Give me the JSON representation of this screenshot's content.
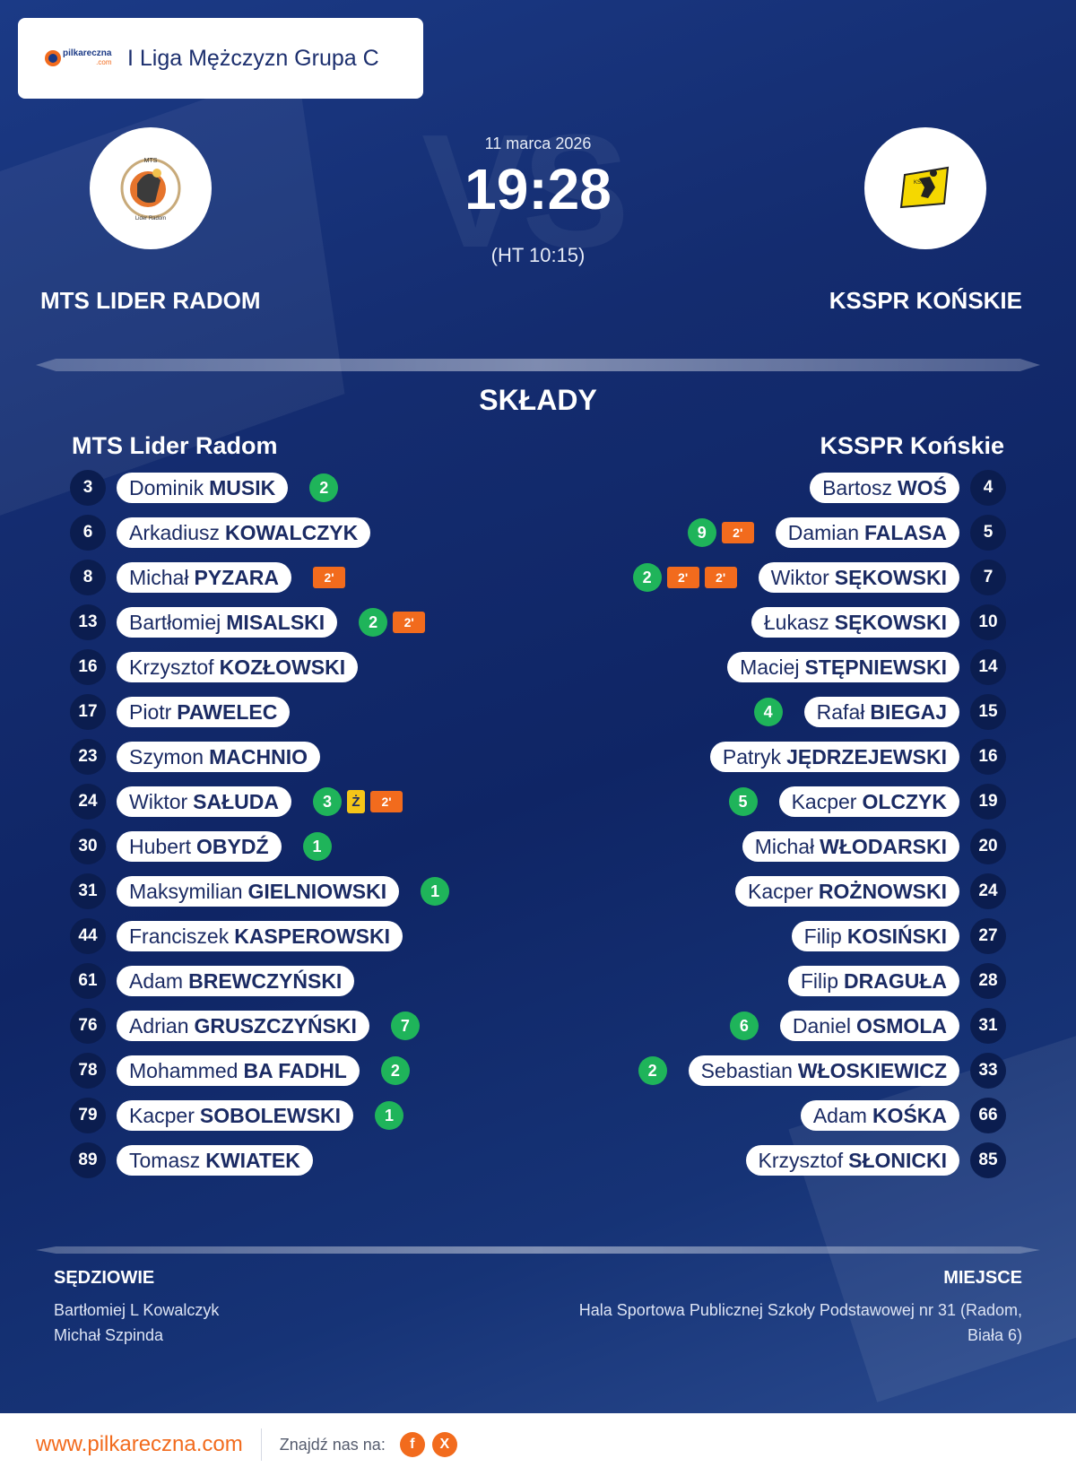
{
  "league": {
    "logo_text": "pilkareczna",
    "logo_suffix": ".com",
    "title": "I Liga Mężczyzn Grupa C"
  },
  "match": {
    "date": "11 marca 2026",
    "score": "19:28",
    "halftime": "(HT 10:15)",
    "watermark": "VS"
  },
  "home_team": {
    "name": "MTS LIDER RADOM",
    "logo_caption_top": "MTS",
    "logo_caption_bottom": "Lider Radom"
  },
  "away_team": {
    "name": "KSSPR KOŃSKIE",
    "logo_caption": "KSSPR"
  },
  "lineups": {
    "title": "SKŁADY",
    "home_title": "MTS Lider Radom",
    "away_title": "KSSPR Końskie",
    "home_players": [
      {
        "number": "3",
        "first": "Dominik",
        "last": "MUSIK",
        "goals": "2",
        "yellow": "",
        "suspensions": []
      },
      {
        "number": "6",
        "first": "Arkadiusz",
        "last": "KOWALCZYK",
        "goals": "",
        "yellow": "",
        "suspensions": []
      },
      {
        "number": "8",
        "first": "Michał",
        "last": "PYZARA",
        "goals": "",
        "yellow": "",
        "suspensions": [
          "2'"
        ]
      },
      {
        "number": "13",
        "first": "Bartłomiej",
        "last": "MISALSKI",
        "goals": "2",
        "yellow": "",
        "suspensions": [
          "2'"
        ]
      },
      {
        "number": "16",
        "first": "Krzysztof",
        "last": "KOZŁOWSKI",
        "goals": "",
        "yellow": "",
        "suspensions": []
      },
      {
        "number": "17",
        "first": "Piotr",
        "last": "PAWELEC",
        "goals": "",
        "yellow": "",
        "suspensions": []
      },
      {
        "number": "23",
        "first": "Szymon",
        "last": "MACHNIO",
        "goals": "",
        "yellow": "",
        "suspensions": []
      },
      {
        "number": "24",
        "first": "Wiktor",
        "last": "SAŁUDA",
        "goals": "3",
        "yellow": "Ż",
        "suspensions": [
          "2'"
        ]
      },
      {
        "number": "30",
        "first": "Hubert",
        "last": "OBYDŹ",
        "goals": "1",
        "yellow": "",
        "suspensions": []
      },
      {
        "number": "31",
        "first": "Maksymilian",
        "last": "GIELNIOWSKI",
        "goals": "1",
        "yellow": "",
        "suspensions": []
      },
      {
        "number": "44",
        "first": "Franciszek",
        "last": "KASPEROWSKI",
        "goals": "",
        "yellow": "",
        "suspensions": []
      },
      {
        "number": "61",
        "first": "Adam",
        "last": "BREWCZYŃSKI",
        "goals": "",
        "yellow": "",
        "suspensions": []
      },
      {
        "number": "76",
        "first": "Adrian",
        "last": "GRUSZCZYŃSKI",
        "goals": "7",
        "yellow": "",
        "suspensions": []
      },
      {
        "number": "78",
        "first": "Mohammed",
        "last": "BA FADHL",
        "goals": "2",
        "yellow": "",
        "suspensions": []
      },
      {
        "number": "79",
        "first": "Kacper",
        "last": "SOBOLEWSKI",
        "goals": "1",
        "yellow": "",
        "suspensions": []
      },
      {
        "number": "89",
        "first": "Tomasz",
        "last": "KWIATEK",
        "goals": "",
        "yellow": "",
        "suspensions": []
      }
    ],
    "away_players": [
      {
        "number": "4",
        "first": "Bartosz",
        "last": "WOŚ",
        "goals": "",
        "yellow": "",
        "suspensions": []
      },
      {
        "number": "5",
        "first": "Damian",
        "last": "FALASA",
        "goals": "9",
        "yellow": "",
        "suspensions": [
          "2'"
        ]
      },
      {
        "number": "7",
        "first": "Wiktor",
        "last": "SĘKOWSKI",
        "goals": "2",
        "yellow": "",
        "suspensions": [
          "2'",
          "2'"
        ]
      },
      {
        "number": "10",
        "first": "Łukasz",
        "last": "SĘKOWSKI",
        "goals": "",
        "yellow": "",
        "suspensions": []
      },
      {
        "number": "14",
        "first": "Maciej",
        "last": "STĘPNIEWSKI",
        "goals": "",
        "yellow": "",
        "suspensions": []
      },
      {
        "number": "15",
        "first": "Rafał",
        "last": "BIEGAJ",
        "goals": "4",
        "yellow": "",
        "suspensions": []
      },
      {
        "number": "16",
        "first": "Patryk",
        "last": "JĘDRZEJEWSKI",
        "goals": "",
        "yellow": "",
        "suspensions": []
      },
      {
        "number": "19",
        "first": "Kacper",
        "last": "OLCZYK",
        "goals": "5",
        "yellow": "",
        "suspensions": []
      },
      {
        "number": "20",
        "first": "Michał",
        "last": "WŁODARSKI",
        "goals": "",
        "yellow": "",
        "suspensions": []
      },
      {
        "number": "24",
        "first": "Kacper",
        "last": "ROŻNOWSKI",
        "goals": "",
        "yellow": "",
        "suspensions": []
      },
      {
        "number": "27",
        "first": "Filip",
        "last": "KOSIŃSKI",
        "goals": "",
        "yellow": "",
        "suspensions": []
      },
      {
        "number": "28",
        "first": "Filip",
        "last": "DRAGUŁA",
        "goals": "",
        "yellow": "",
        "suspensions": []
      },
      {
        "number": "31",
        "first": "Daniel",
        "last": "OSMOLA",
        "goals": "6",
        "yellow": "",
        "suspensions": []
      },
      {
        "number": "33",
        "first": "Sebastian",
        "last": "WŁOSKIEWICZ",
        "goals": "2",
        "yellow": "",
        "suspensions": []
      },
      {
        "number": "66",
        "first": "Adam",
        "last": "KOŚKA",
        "goals": "",
        "yellow": "",
        "suspensions": []
      },
      {
        "number": "85",
        "first": "Krzysztof",
        "last": "SŁONICKI",
        "goals": "",
        "yellow": "",
        "suspensions": []
      }
    ]
  },
  "officials": {
    "heading": "SĘDZIOWIE",
    "names": [
      "Bartłomiej L Kowalczyk",
      "Michał Szpinda"
    ]
  },
  "venue": {
    "heading": "MIEJSCE",
    "text": "Hala Sportowa Publicznej Szkoły Podstawowej nr 31 (Radom, Biała 6)"
  },
  "footer": {
    "url": "www.pilkareczna.com",
    "find_us": "Znajdź nas na:",
    "social": [
      {
        "icon": "facebook-icon",
        "glyph": "f"
      },
      {
        "icon": "x-icon",
        "glyph": "X"
      }
    ]
  },
  "colors": {
    "background": "#0e2360",
    "accent": "#f26b1d",
    "goal": "#1fb45a",
    "yellow_card": "#f5c518",
    "number_circle": "#0b1d4f"
  }
}
